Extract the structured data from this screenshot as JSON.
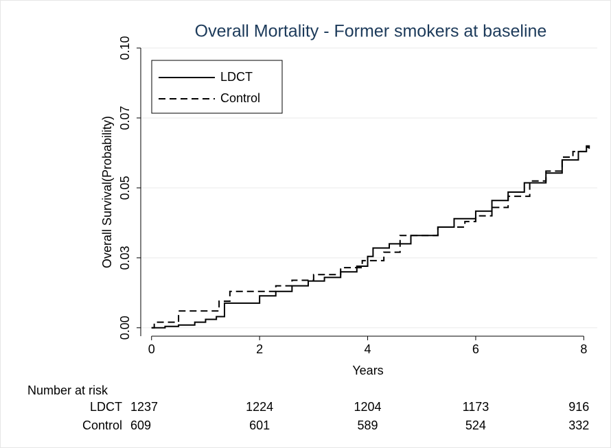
{
  "chart_data": {
    "type": "line",
    "drawstyle": "steps-post",
    "title": "Overall Mortality - Former smokers at baseline",
    "xlabel": "Years",
    "ylabel": "Overall Survival(Probability)",
    "xlim": [
      -0.2,
      8.25
    ],
    "ylim": [
      -0.003,
      0.1
    ],
    "xticks": [
      0,
      2,
      4,
      6,
      8
    ],
    "yticks": [
      {
        "value": 0,
        "label": "0.00"
      },
      {
        "value": 0.025,
        "label": "0.03"
      },
      0.05,
      {
        "value": 0.075,
        "label": "0.07"
      },
      {
        "value": 0.1,
        "label": "0.10"
      }
    ],
    "grid": true,
    "legend": "upper left",
    "series": [
      {
        "name": "LDCT",
        "color": "#000000",
        "dash": "solid",
        "x": [
          0,
          0.25,
          0.5,
          0.8,
          1.0,
          1.2,
          1.35,
          2.0,
          2.3,
          2.6,
          2.9,
          3.2,
          3.5,
          3.8,
          4.0,
          4.1,
          4.4,
          4.8,
          5.3,
          5.6,
          6.0,
          6.3,
          6.6,
          6.9,
          7.3,
          7.6,
          7.9,
          8.05,
          8.1
        ],
        "y": [
          0,
          0.0005,
          0.001,
          0.002,
          0.003,
          0.004,
          0.0088,
          0.0114,
          0.013,
          0.015,
          0.0167,
          0.018,
          0.02,
          0.022,
          0.0255,
          0.0285,
          0.03,
          0.033,
          0.036,
          0.039,
          0.0417,
          0.0455,
          0.0485,
          0.0518,
          0.0553,
          0.06,
          0.063,
          0.065,
          0.064
        ]
      },
      {
        "name": "Control",
        "color": "#000000",
        "dash": "dashed",
        "x": [
          0,
          0.05,
          0.5,
          1.25,
          1.45,
          2.3,
          2.6,
          3.0,
          3.5,
          3.9,
          4.3,
          4.6,
          5.3,
          5.8,
          6.0,
          6.3,
          6.6,
          7.0,
          7.3,
          7.6,
          7.8,
          8.05,
          8.1
        ],
        "y": [
          0,
          0.002,
          0.006,
          0.0095,
          0.013,
          0.015,
          0.017,
          0.019,
          0.0215,
          0.024,
          0.027,
          0.033,
          0.036,
          0.038,
          0.04,
          0.043,
          0.047,
          0.0525,
          0.056,
          0.061,
          0.063,
          0.0645,
          0.0645
        ]
      }
    ],
    "risk_table": {
      "title": "Number at risk",
      "rows": [
        {
          "name": "LDCT",
          "values": [
            1237,
            1224,
            1204,
            1173,
            916
          ]
        },
        {
          "name": "Control",
          "values": [
            609,
            601,
            589,
            524,
            332
          ]
        }
      ]
    }
  }
}
